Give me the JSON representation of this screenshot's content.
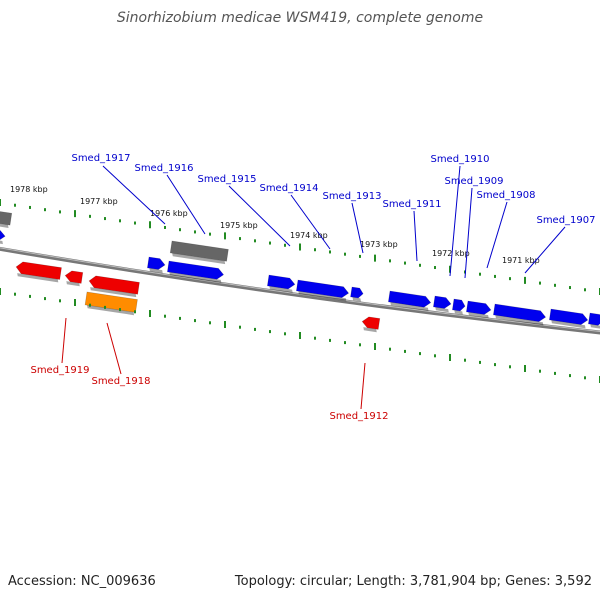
{
  "title": "Sinorhizobium medicae WSM419, complete genome",
  "footer": {
    "accession": "Accession: NC_009636",
    "summary": "Topology: circular; Length: 3,781,904 bp; Genes: 3,592"
  },
  "colors": {
    "forward_gene": "#0000ee",
    "reverse_gene": "#ee0000",
    "gray_gene": "#666666",
    "orange_gene": "#ff8c00",
    "tick": "#228b22",
    "backbone": "#777777",
    "forward_label": "#0000cc",
    "reverse_label": "#cc0000"
  },
  "ticks": [
    {
      "label": "1978 kbp"
    },
    {
      "label": "1977 kbp"
    },
    {
      "label": "1976 kbp"
    },
    {
      "label": "1975 kbp"
    },
    {
      "label": "1974 kbp"
    },
    {
      "label": "1973 kbp"
    },
    {
      "label": "1972 kbp"
    },
    {
      "label": "1971 kbp"
    }
  ],
  "forward_labels": [
    {
      "name": "Smed_1917"
    },
    {
      "name": "Smed_1916"
    },
    {
      "name": "Smed_1915"
    },
    {
      "name": "Smed_1914"
    },
    {
      "name": "Smed_1913"
    },
    {
      "name": "Smed_1911"
    },
    {
      "name": "Smed_1910"
    },
    {
      "name": "Smed_1909"
    },
    {
      "name": "Smed_1908"
    },
    {
      "name": "Smed_1907"
    }
  ],
  "reverse_labels": [
    {
      "name": "Smed_1919"
    },
    {
      "name": "Smed_1918"
    },
    {
      "name": "Smed_1912"
    }
  ]
}
